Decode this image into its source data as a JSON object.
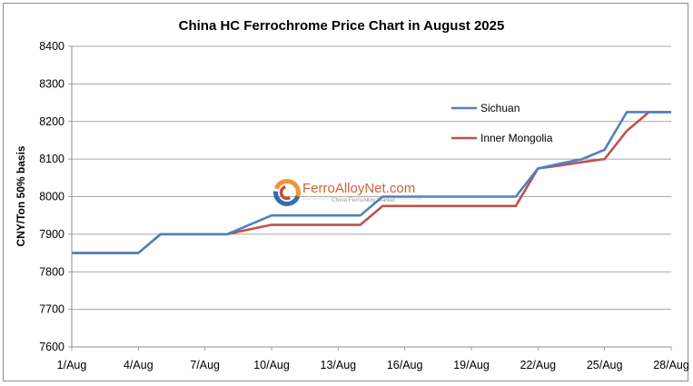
{
  "chart_data": {
    "type": "line",
    "title": "China HC Ferrochrome Price Chart in August 2025",
    "ylabel": "CNY/Ton 50% basis",
    "xlabel": "",
    "ylim": [
      7600,
      8400
    ],
    "yticks": [
      7600,
      7700,
      7800,
      7900,
      8000,
      8100,
      8200,
      8300,
      8400
    ],
    "x": [
      1,
      2,
      3,
      4,
      5,
      6,
      7,
      8,
      9,
      10,
      11,
      12,
      13,
      14,
      15,
      16,
      17,
      18,
      19,
      20,
      21,
      22,
      23,
      24,
      25,
      26,
      27,
      28
    ],
    "xlim": [
      1,
      28
    ],
    "xticks": [
      1,
      4,
      7,
      10,
      13,
      16,
      19,
      22,
      25,
      28
    ],
    "xtick_labels": [
      "1/Aug",
      "4/Aug",
      "7/Aug",
      "10/Aug",
      "13/Aug",
      "16/Aug",
      "19/Aug",
      "22/Aug",
      "25/Aug",
      "28/Aug"
    ],
    "series": [
      {
        "name": "Sichuan",
        "color": "#4f81bd",
        "values": [
          7850,
          7850,
          7850,
          7850,
          7900,
          7900,
          7900,
          7900,
          7925,
          7950,
          7950,
          7950,
          7950,
          7950,
          8000,
          8000,
          8000,
          8000,
          8000,
          8000,
          8000,
          8075,
          8088,
          8100,
          8125,
          8225,
          8225,
          8225
        ]
      },
      {
        "name": "Inner Mongolia",
        "color": "#c0504d",
        "values": [
          7850,
          7850,
          7850,
          7850,
          7900,
          7900,
          7900,
          7900,
          7913,
          7925,
          7925,
          7925,
          7925,
          7925,
          7975,
          7975,
          7975,
          7975,
          7975,
          7975,
          7975,
          8075,
          8083,
          8092,
          8100,
          8175,
          8225,
          8225
        ]
      }
    ],
    "grid": "horizontal",
    "legend_position": "right"
  },
  "watermark": {
    "brand": "FerroAlloyNet.com",
    "tagline": "China FerroAlloy Market"
  }
}
